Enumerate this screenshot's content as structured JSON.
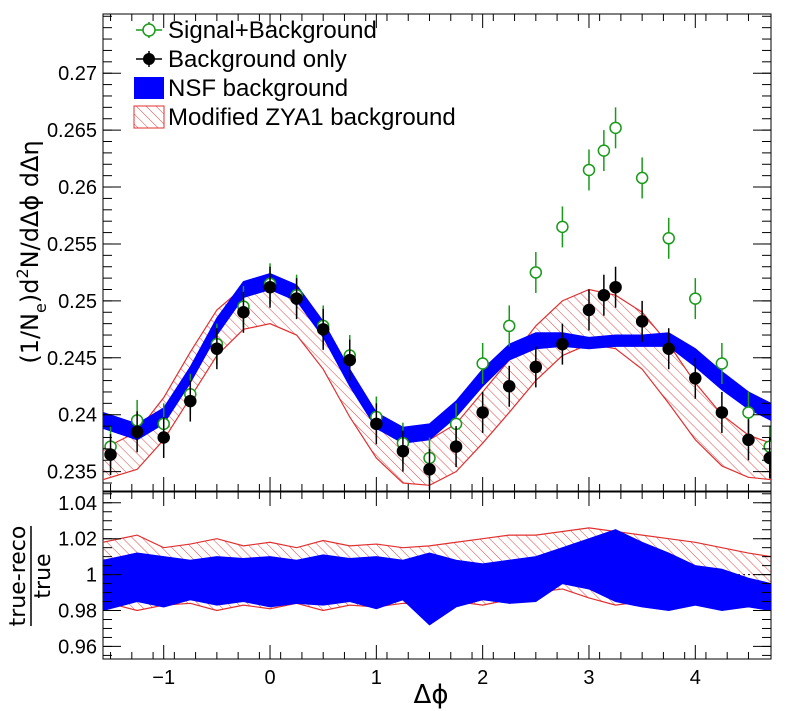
{
  "chart_data": [
    {
      "type": "scatter",
      "panel": "top",
      "xlabel": "Δϕ",
      "ylabel": "(1/N_e)d²N/dΔϕ dΔη",
      "ylabel_parts": {
        "pre": "(1/N",
        "sub": "e",
        "mid": ")d",
        "sup": "2",
        "post": "N/dΔϕ dΔη"
      },
      "xlim": [
        -1.571,
        4.712
      ],
      "ylim": [
        0.2333,
        0.2752
      ],
      "x_ticks": [
        -1,
        0,
        1,
        2,
        3,
        4
      ],
      "x_tick_labels": [
        "−1",
        "0",
        "1",
        "2",
        "3",
        "4"
      ],
      "y_ticks": [
        0.235,
        0.24,
        0.245,
        0.25,
        0.255,
        0.26,
        0.265,
        0.27
      ],
      "y_tick_labels": [
        "0.235",
        "0.24",
        "0.245",
        "0.25",
        "0.255",
        "0.26",
        "0.265",
        "0.27"
      ],
      "legend": [
        {
          "label": "Signal+Background",
          "marker": "open-circle",
          "color": "#1a9a1a"
        },
        {
          "label": "Background only",
          "marker": "filled-circle",
          "color": "#000000"
        },
        {
          "label": "NSF background",
          "marker": "filled-box",
          "color": "#0000ff"
        },
        {
          "label": "Modified ZYA1 background",
          "marker": "hatched-box",
          "color": "#e03030"
        }
      ],
      "series": [
        {
          "name": "Signal+Background",
          "x": [
            -1.5,
            -1.25,
            -1.0,
            -0.75,
            -0.5,
            -0.25,
            0.0,
            0.25,
            0.5,
            0.75,
            1.0,
            1.25,
            1.5,
            1.75,
            2.0,
            2.25,
            2.5,
            2.75,
            3.0,
            3.14,
            3.25,
            3.5,
            3.75,
            4.0,
            4.25,
            4.5,
            4.7
          ],
          "y": [
            0.2372,
            0.2395,
            0.2392,
            0.2418,
            0.2462,
            0.2495,
            0.2515,
            0.2505,
            0.2478,
            0.2452,
            0.2398,
            0.2375,
            0.2362,
            0.2392,
            0.2445,
            0.2478,
            0.2525,
            0.2565,
            0.2615,
            0.2632,
            0.2652,
            0.2608,
            0.2555,
            0.2502,
            0.2445,
            0.2402,
            0.2372
          ],
          "err": [
            0.0018,
            0.0018,
            0.0018,
            0.0018,
            0.0018,
            0.0018,
            0.0018,
            0.0018,
            0.0018,
            0.0018,
            0.0018,
            0.0018,
            0.0018,
            0.0018,
            0.0018,
            0.0018,
            0.0018,
            0.0018,
            0.0018,
            0.0018,
            0.0018,
            0.0018,
            0.0018,
            0.0018,
            0.0018,
            0.0018,
            0.0018
          ]
        },
        {
          "name": "Background only",
          "x": [
            -1.5,
            -1.25,
            -1.0,
            -0.75,
            -0.5,
            -0.25,
            0.0,
            0.25,
            0.5,
            0.75,
            1.0,
            1.25,
            1.5,
            1.75,
            2.0,
            2.25,
            2.5,
            2.75,
            3.0,
            3.14,
            3.25,
            3.5,
            3.75,
            4.0,
            4.25,
            4.5,
            4.7
          ],
          "y": [
            0.2365,
            0.2385,
            0.238,
            0.2412,
            0.2458,
            0.249,
            0.2512,
            0.2502,
            0.2475,
            0.2448,
            0.2392,
            0.2368,
            0.2352,
            0.2372,
            0.2402,
            0.2425,
            0.2442,
            0.2462,
            0.2492,
            0.2505,
            0.2512,
            0.2482,
            0.2458,
            0.2432,
            0.2402,
            0.2378,
            0.2362
          ],
          "err": [
            0.0018,
            0.0018,
            0.0018,
            0.0018,
            0.0018,
            0.0018,
            0.0018,
            0.0018,
            0.0018,
            0.0018,
            0.0018,
            0.0018,
            0.0018,
            0.0018,
            0.0018,
            0.0018,
            0.0018,
            0.0018,
            0.0018,
            0.0018,
            0.0018,
            0.0018,
            0.0018,
            0.0018,
            0.0018,
            0.0018,
            0.0018
          ]
        },
        {
          "name": "NSF background",
          "kind": "band",
          "x": [
            -1.571,
            -1.25,
            -1.0,
            -0.75,
            -0.5,
            -0.25,
            0.0,
            0.25,
            0.5,
            0.75,
            1.0,
            1.25,
            1.5,
            1.75,
            2.0,
            2.25,
            2.5,
            2.75,
            3.0,
            3.25,
            3.5,
            3.75,
            4.0,
            4.25,
            4.5,
            4.712
          ],
          "low": [
            0.2388,
            0.2378,
            0.2392,
            0.2428,
            0.247,
            0.2503,
            0.251,
            0.25,
            0.2468,
            0.2425,
            0.2388,
            0.2375,
            0.2378,
            0.2398,
            0.2425,
            0.2448,
            0.2458,
            0.246,
            0.2458,
            0.246,
            0.246,
            0.246,
            0.2442,
            0.2422,
            0.2405,
            0.2395
          ],
          "high": [
            0.2402,
            0.2392,
            0.2406,
            0.2442,
            0.2485,
            0.2517,
            0.2524,
            0.2514,
            0.2482,
            0.244,
            0.2402,
            0.2389,
            0.2392,
            0.2412,
            0.244,
            0.2462,
            0.2472,
            0.2472,
            0.2468,
            0.247,
            0.247,
            0.2472,
            0.2458,
            0.2438,
            0.242,
            0.241
          ]
        },
        {
          "name": "Modified ZYA1 background",
          "kind": "band",
          "x": [
            -1.571,
            -1.25,
            -1.0,
            -0.75,
            -0.5,
            -0.25,
            0.0,
            0.25,
            0.5,
            0.75,
            1.0,
            1.25,
            1.5,
            1.75,
            2.0,
            2.25,
            2.5,
            2.75,
            3.0,
            3.25,
            3.5,
            3.75,
            4.0,
            4.25,
            4.5,
            4.712
          ],
          "low": [
            0.2343,
            0.2352,
            0.2378,
            0.2415,
            0.2452,
            0.2475,
            0.248,
            0.247,
            0.244,
            0.2398,
            0.2362,
            0.234,
            0.2338,
            0.235,
            0.2375,
            0.2402,
            0.243,
            0.2452,
            0.2462,
            0.2458,
            0.244,
            0.241,
            0.2378,
            0.2355,
            0.2345,
            0.2343
          ],
          "high": [
            0.237,
            0.2385,
            0.2415,
            0.2455,
            0.2492,
            0.2512,
            0.2518,
            0.2508,
            0.2478,
            0.2435,
            0.24,
            0.2378,
            0.2378,
            0.2392,
            0.242,
            0.2448,
            0.2478,
            0.25,
            0.251,
            0.2505,
            0.249,
            0.2462,
            0.2428,
            0.24,
            0.2382,
            0.2375
          ]
        }
      ]
    },
    {
      "type": "area",
      "panel": "bottom",
      "xlabel": "Δϕ",
      "ylabel_num": "true-reco",
      "ylabel_den": "true",
      "xlim": [
        -1.571,
        4.712
      ],
      "ylim": [
        0.953,
        1.046
      ],
      "y_ticks": [
        0.96,
        0.98,
        1.0,
        1.02,
        1.04
      ],
      "y_tick_labels": [
        "0.96",
        "0.98",
        "1",
        "1.02",
        "1.04"
      ],
      "series": [
        {
          "name": "Modified ZYA1 background",
          "x": [
            -1.571,
            -1.25,
            -1.0,
            -0.75,
            -0.5,
            -0.25,
            0.0,
            0.25,
            0.5,
            0.75,
            1.0,
            1.25,
            1.5,
            1.75,
            2.0,
            2.25,
            2.5,
            2.75,
            3.0,
            3.25,
            3.5,
            3.75,
            4.0,
            4.25,
            4.5,
            4.712
          ],
          "low": [
            0.985,
            0.98,
            0.983,
            0.984,
            0.98,
            0.983,
            0.981,
            0.984,
            0.98,
            0.983,
            0.982,
            0.984,
            0.983,
            0.985,
            0.983,
            0.986,
            0.99,
            0.992,
            0.987,
            0.983,
            0.985,
            0.988,
            0.989,
            0.99,
            0.993,
            0.991
          ],
          "high": [
            1.018,
            1.022,
            1.015,
            1.017,
            1.02,
            1.016,
            1.018,
            1.015,
            1.019,
            1.016,
            1.017,
            1.015,
            1.016,
            1.018,
            1.02,
            1.022,
            1.022,
            1.024,
            1.026,
            1.024,
            1.022,
            1.02,
            1.018,
            1.015,
            1.012,
            1.01
          ]
        },
        {
          "name": "NSF background",
          "x": [
            -1.571,
            -1.25,
            -1.0,
            -0.75,
            -0.5,
            -0.25,
            0.0,
            0.25,
            0.5,
            0.75,
            1.0,
            1.25,
            1.5,
            1.75,
            2.0,
            2.25,
            2.5,
            2.75,
            3.0,
            3.25,
            3.5,
            3.75,
            4.0,
            4.25,
            4.5,
            4.712
          ],
          "low": [
            0.98,
            0.985,
            0.982,
            0.986,
            0.983,
            0.985,
            0.982,
            0.984,
            0.983,
            0.985,
            0.981,
            0.986,
            0.972,
            0.982,
            0.986,
            0.984,
            0.985,
            0.995,
            0.992,
            0.985,
            0.982,
            0.98,
            0.983,
            0.98,
            0.982,
            0.98
          ],
          "high": [
            1.008,
            1.012,
            1.01,
            1.008,
            1.01,
            1.009,
            1.01,
            1.008,
            1.011,
            1.009,
            1.01,
            1.008,
            1.012,
            1.008,
            1.006,
            1.008,
            1.01,
            1.015,
            1.02,
            1.025,
            1.018,
            1.012,
            1.005,
            1.003,
            0.998,
            0.995
          ]
        }
      ]
    }
  ]
}
